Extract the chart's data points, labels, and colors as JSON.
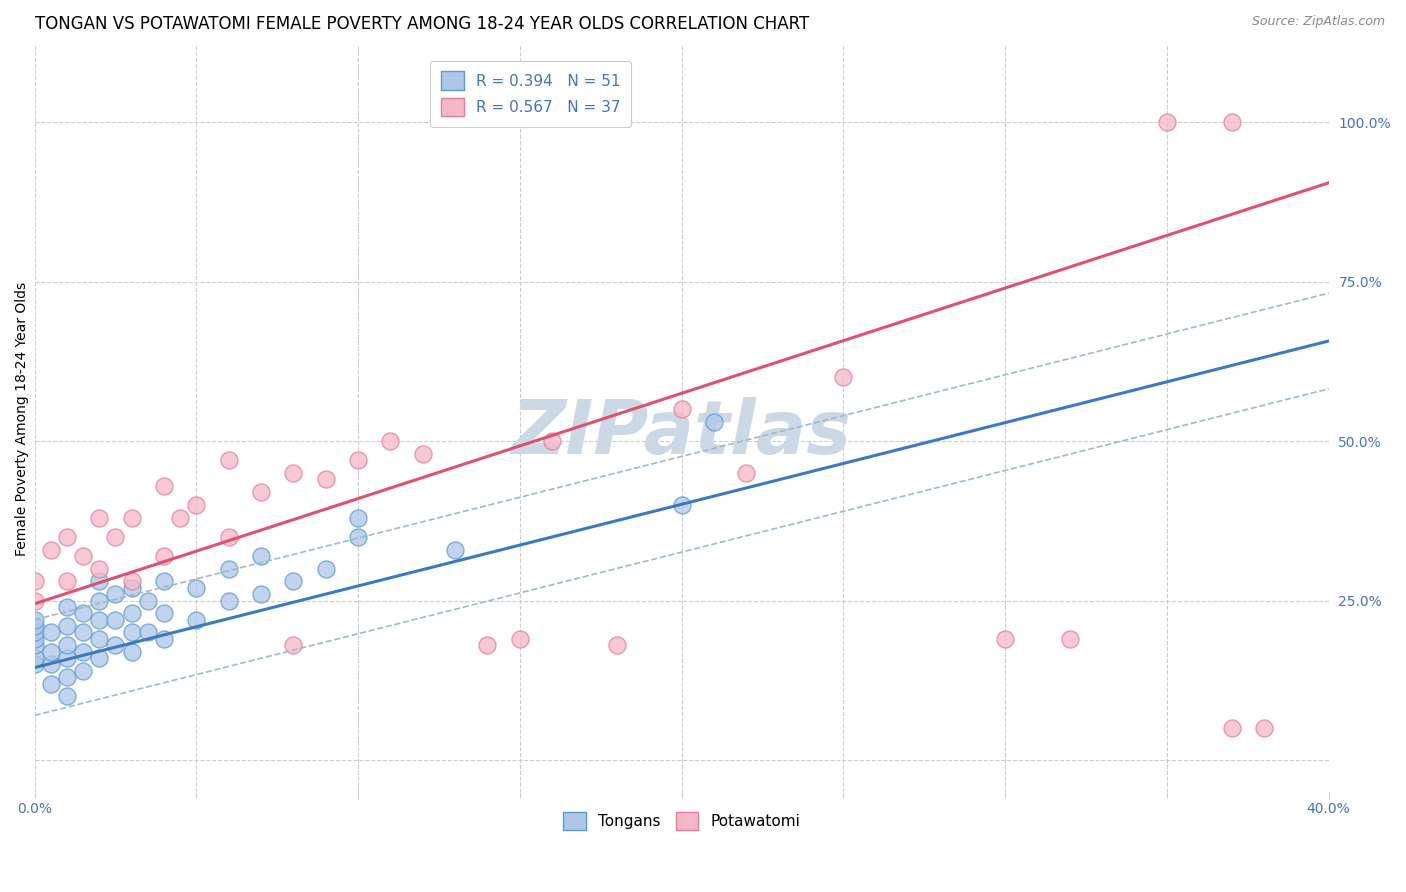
{
  "title": "TONGAN VS POTAWATOMI FEMALE POVERTY AMONG 18-24 YEAR OLDS CORRELATION CHART",
  "source": "Source: ZipAtlas.com",
  "ylabel": "Female Poverty Among 18-24 Year Olds",
  "xlim": [
    0.0,
    0.4
  ],
  "ylim": [
    -0.05,
    1.12
  ],
  "xticks": [
    0.0,
    0.05,
    0.1,
    0.15,
    0.2,
    0.25,
    0.3,
    0.35,
    0.4
  ],
  "yticks_right": [
    0.0,
    0.25,
    0.5,
    0.75,
    1.0
  ],
  "ytick_labels_right": [
    "",
    "25.0%",
    "50.0%",
    "75.0%",
    "100.0%"
  ],
  "blue_face": "#aec6e8",
  "blue_edge": "#5b9bd5",
  "pink_face": "#f4b8c8",
  "pink_edge": "#e87c99",
  "line_blue": "#3a7abf",
  "line_pink": "#e05070",
  "dash_color": "#a0b8d0",
  "watermark": "ZIPatlas",
  "watermark_color": "#ccd8e5",
  "bg_color": "#ffffff",
  "grid_color": "#cccccc",
  "tick_color": "#4472c4",
  "title_fontsize": 12,
  "axis_label_fontsize": 10,
  "tick_fontsize": 10,
  "legend_fontsize": 11,
  "blue_line_intercept": 0.145,
  "blue_line_slope": 1.28,
  "pink_line_intercept": 0.245,
  "pink_line_slope": 1.65,
  "dash_upper_intercept": 0.22,
  "dash_upper_slope": 1.28,
  "dash_lower_intercept": 0.07,
  "dash_lower_slope": 1.28,
  "tongans_x": [
    0.0,
    0.0,
    0.0,
    0.0,
    0.0,
    0.0,
    0.0,
    0.005,
    0.005,
    0.005,
    0.005,
    0.01,
    0.01,
    0.01,
    0.01,
    0.01,
    0.01,
    0.015,
    0.015,
    0.015,
    0.015,
    0.02,
    0.02,
    0.02,
    0.02,
    0.02,
    0.025,
    0.025,
    0.025,
    0.03,
    0.03,
    0.03,
    0.03,
    0.035,
    0.035,
    0.04,
    0.04,
    0.04,
    0.05,
    0.05,
    0.06,
    0.06,
    0.07,
    0.07,
    0.08,
    0.09,
    0.1,
    0.1,
    0.13,
    0.2,
    0.21
  ],
  "tongans_y": [
    0.15,
    0.16,
    0.18,
    0.19,
    0.2,
    0.21,
    0.22,
    0.12,
    0.15,
    0.17,
    0.2,
    0.1,
    0.13,
    0.16,
    0.18,
    0.21,
    0.24,
    0.14,
    0.17,
    0.2,
    0.23,
    0.16,
    0.19,
    0.22,
    0.25,
    0.28,
    0.18,
    0.22,
    0.26,
    0.17,
    0.2,
    0.23,
    0.27,
    0.2,
    0.25,
    0.19,
    0.23,
    0.28,
    0.22,
    0.27,
    0.25,
    0.3,
    0.26,
    0.32,
    0.28,
    0.3,
    0.35,
    0.38,
    0.33,
    0.4,
    0.53
  ],
  "potawatomi_x": [
    0.0,
    0.0,
    0.005,
    0.01,
    0.01,
    0.015,
    0.02,
    0.02,
    0.025,
    0.03,
    0.03,
    0.04,
    0.04,
    0.045,
    0.05,
    0.06,
    0.06,
    0.07,
    0.08,
    0.08,
    0.09,
    0.1,
    0.11,
    0.12,
    0.14,
    0.15,
    0.16,
    0.18,
    0.2,
    0.22,
    0.25,
    0.3,
    0.32,
    0.35,
    0.37,
    0.37,
    0.38
  ],
  "potawatomi_y": [
    0.25,
    0.28,
    0.33,
    0.28,
    0.35,
    0.32,
    0.3,
    0.38,
    0.35,
    0.28,
    0.38,
    0.32,
    0.43,
    0.38,
    0.4,
    0.35,
    0.47,
    0.42,
    0.45,
    0.18,
    0.44,
    0.47,
    0.5,
    0.48,
    0.18,
    0.19,
    0.5,
    0.18,
    0.55,
    0.45,
    0.6,
    0.19,
    0.19,
    1.0,
    1.0,
    0.05,
    0.05
  ]
}
